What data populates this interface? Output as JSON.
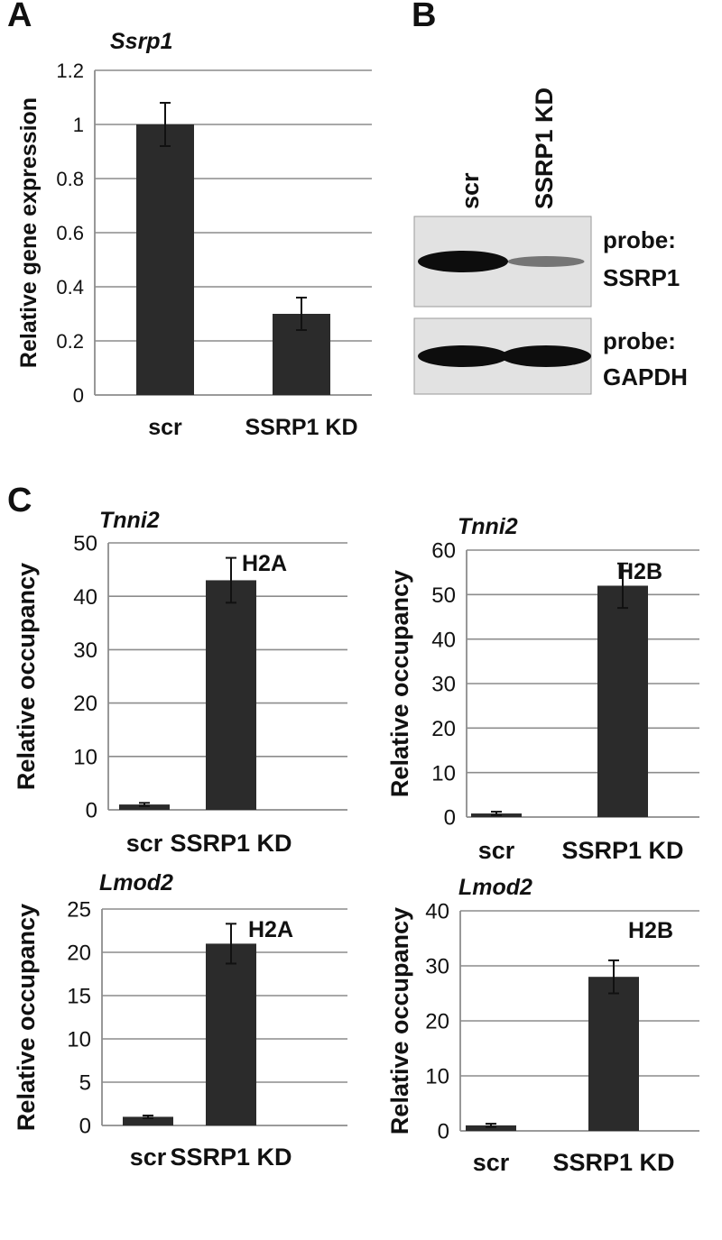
{
  "panel_labels": {
    "a": "A",
    "b": "B",
    "c": "C"
  },
  "chart_data": [
    {
      "panel": "A",
      "type": "bar",
      "title": "Ssrp1",
      "ylabel": "Relative gene expression",
      "categories": [
        "scr",
        "SSRP1 KD"
      ],
      "values": [
        1.0,
        0.3
      ],
      "errors": [
        0.08,
        0.06
      ],
      "ylim": [
        0,
        1.2
      ],
      "yticks": [
        "0",
        "0.2",
        "0.4",
        "0.6",
        "0.8",
        "1",
        "1.2"
      ],
      "annotation": "",
      "grid": true
    },
    {
      "panel": "C",
      "type": "bar",
      "title": "Tnni2",
      "ylabel": "Relative occupancy",
      "categories": [
        "scr",
        "SSRP1 KD"
      ],
      "values": [
        1,
        43
      ],
      "errors": [
        0.3,
        4.2
      ],
      "ylim": [
        0,
        50
      ],
      "yticks": [
        "0",
        "10",
        "20",
        "30",
        "40",
        "50"
      ],
      "annotation": "H2A",
      "grid": true
    },
    {
      "panel": "C",
      "type": "bar",
      "title": "Tnni2",
      "ylabel": "Relative occupancy",
      "categories": [
        "scr",
        "SSRP1 KD"
      ],
      "values": [
        0.8,
        52
      ],
      "errors": [
        0.4,
        5
      ],
      "ylim": [
        0,
        60
      ],
      "yticks": [
        "0",
        "10",
        "20",
        "30",
        "40",
        "50",
        "60"
      ],
      "annotation": "H2B",
      "grid": true
    },
    {
      "panel": "C",
      "type": "bar",
      "title": "Lmod2",
      "ylabel": "Relative occupancy",
      "categories": [
        "scr",
        "SSRP1 KD"
      ],
      "values": [
        1,
        21
      ],
      "errors": [
        0.15,
        2.3
      ],
      "ylim": [
        0,
        25
      ],
      "yticks": [
        "0",
        "5",
        "10",
        "15",
        "20",
        "25"
      ],
      "annotation": "H2A",
      "grid": true
    },
    {
      "panel": "C",
      "type": "bar",
      "title": "Lmod2",
      "ylabel": "Relative occupancy",
      "categories": [
        "scr",
        "SSRP1 KD"
      ],
      "values": [
        1,
        28
      ],
      "errors": [
        0.3,
        3
      ],
      "ylim": [
        0,
        40
      ],
      "yticks": [
        "0",
        "10",
        "20",
        "30",
        "40"
      ],
      "annotation": "H2B",
      "grid": true
    }
  ],
  "western_blot": {
    "lanes": [
      "scr",
      "SSRP1 KD"
    ],
    "blots": [
      {
        "probe_label": "probe:",
        "target": "SSRP1",
        "relative_intensity": [
          1.0,
          0.25
        ]
      },
      {
        "probe_label": "probe:",
        "target": "GAPDH",
        "relative_intensity": [
          1.0,
          1.0
        ]
      }
    ]
  },
  "colors": {
    "bar": "#2b2b2b",
    "grid": "#8c8c8c",
    "axis": "#8c8c8c",
    "text": "#111111",
    "blot_bg": "#e2e2e2",
    "band": "#0d0d0d"
  }
}
